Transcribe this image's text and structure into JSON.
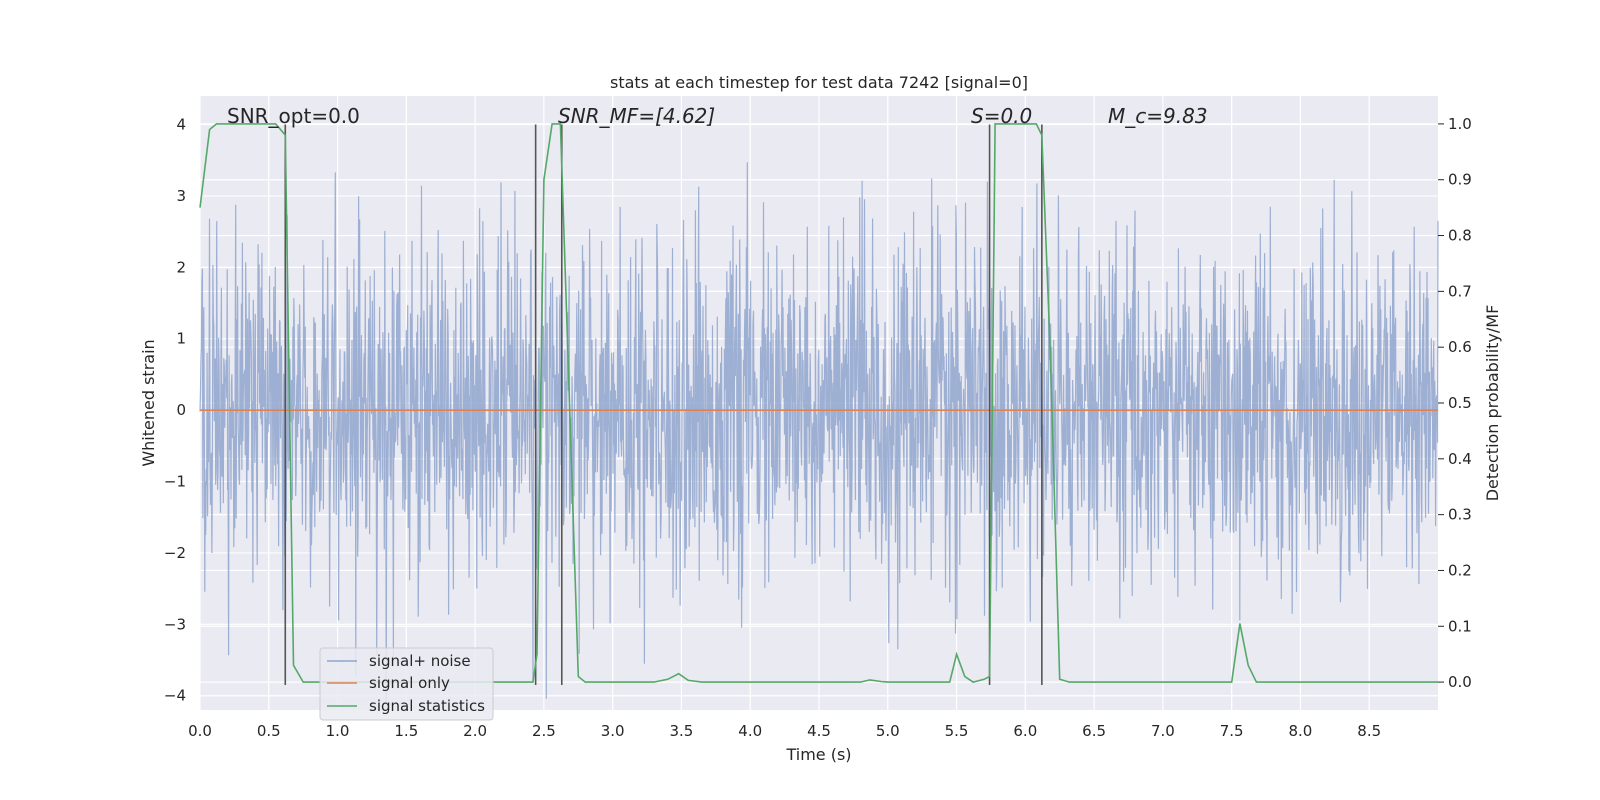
{
  "chart_data": {
    "type": "line",
    "title": "stats at each timestep for test data 7242 [signal=0]",
    "xlabel": "Time (s)",
    "ylabel": "Whitened strain",
    "y2label": "Detection probability/MF",
    "xlim": [
      0.0,
      9.0
    ],
    "ylim": [
      -4.2,
      4.4
    ],
    "y2lim": [
      -0.05,
      1.05
    ],
    "xticks": [
      0.0,
      0.5,
      1.0,
      1.5,
      2.0,
      2.5,
      3.0,
      3.5,
      4.0,
      4.5,
      5.0,
      5.5,
      6.0,
      6.5,
      7.0,
      7.5,
      8.0,
      8.5
    ],
    "xtick_labels": [
      "0.0",
      "0.5",
      "1.0",
      "1.5",
      "2.0",
      "2.5",
      "3.0",
      "3.5",
      "4.0",
      "4.5",
      "5.0",
      "5.5",
      "6.0",
      "6.5",
      "7.0",
      "7.5",
      "8.0",
      "8.5"
    ],
    "yticks": [
      4,
      3,
      2,
      1,
      0,
      -1,
      -2,
      -3,
      -4
    ],
    "ytick_labels": [
      "4",
      "3",
      "2",
      "1",
      "0",
      "−1",
      "−2",
      "−3",
      "−4"
    ],
    "y2ticks": [
      1.0,
      0.9,
      0.8,
      0.7,
      0.6,
      0.5,
      0.4,
      0.3,
      0.2,
      0.1,
      0.0
    ],
    "y2tick_labels": [
      "1.0",
      "0.9",
      "0.8",
      "0.7",
      "0.6",
      "0.5",
      "0.4",
      "0.3",
      "0.2",
      "0.1",
      "0.0"
    ],
    "grid": true,
    "legend_position": "lower-left",
    "annotations": [
      {
        "text": "SNR_opt=0.0",
        "x": 0.2,
        "y": 4.2
      },
      {
        "text": "SNR_MF=[4.62]",
        "x": 2.6,
        "y": 4.2
      },
      {
        "text": "S=0.0",
        "x": 5.6,
        "y": 4.2
      },
      {
        "text": "M_c=9.83",
        "x": 6.6,
        "y": 4.2
      }
    ],
    "vlines": [
      {
        "x": 0.62,
        "ymin": -3.85,
        "ymax": 4.0
      },
      {
        "x": 2.44,
        "ymin": -3.85,
        "ymax": 4.0
      },
      {
        "x": 2.63,
        "ymin": -3.85,
        "ymax": 4.0
      },
      {
        "x": 5.74,
        "ymin": -3.85,
        "ymax": 4.0
      },
      {
        "x": 6.12,
        "ymin": -3.85,
        "ymax": 4.0
      }
    ],
    "series": [
      {
        "name": "signal+ noise",
        "axis": "left",
        "color": "#8fa5cc",
        "description_visible": "dense noisy strain trace",
        "x_range": [
          0.0,
          9.0
        ],
        "envelope": [
          -4.1,
          4.0
        ]
      },
      {
        "name": "signal only",
        "axis": "left",
        "color": "#dd8452",
        "x": [
          0.0,
          9.0
        ],
        "y": [
          0.0,
          0.0
        ]
      },
      {
        "name": "signal statistics",
        "axis": "right",
        "color": "#55a868",
        "x": [
          0.0,
          0.07,
          0.12,
          0.3,
          0.55,
          0.62,
          0.68,
          0.75,
          0.85,
          1.0,
          2.0,
          2.42,
          2.45,
          2.5,
          2.56,
          2.62,
          2.68,
          2.75,
          2.8,
          3.0,
          3.3,
          3.4,
          3.48,
          3.55,
          3.65,
          4.0,
          4.5,
          4.8,
          4.87,
          4.95,
          5.0,
          5.45,
          5.5,
          5.56,
          5.62,
          5.7,
          5.74,
          5.78,
          5.85,
          6.0,
          6.08,
          6.12,
          6.18,
          6.25,
          6.32,
          7.0,
          7.5,
          7.56,
          7.62,
          7.68,
          8.0,
          9.0
        ],
        "y": [
          0.85,
          0.99,
          1.0,
          1.0,
          1.0,
          0.98,
          0.03,
          0.0,
          0.0,
          0.0,
          0.0,
          0.0,
          0.05,
          0.9,
          1.0,
          1.0,
          0.55,
          0.01,
          0.0,
          0.0,
          0.0,
          0.005,
          0.015,
          0.003,
          0.0,
          0.0,
          0.0,
          0.0,
          0.004,
          0.001,
          0.0,
          0.0,
          0.05,
          0.01,
          0.0,
          0.005,
          0.01,
          1.0,
          1.0,
          1.0,
          1.0,
          0.98,
          0.6,
          0.005,
          0.0,
          0.0,
          0.0,
          0.105,
          0.03,
          0.0,
          0.0,
          0.0
        ]
      }
    ]
  }
}
